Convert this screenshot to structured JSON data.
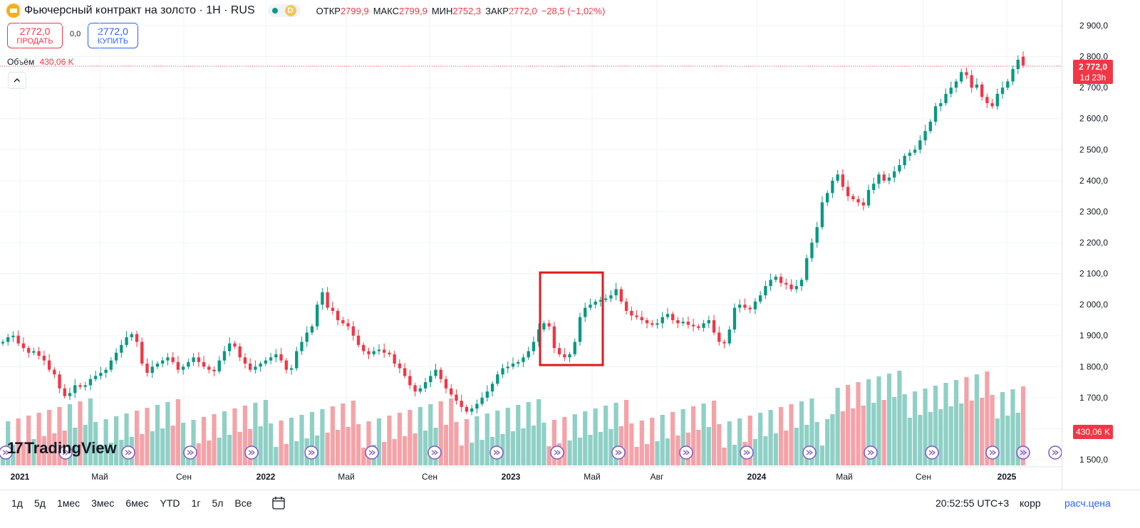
{
  "header": {
    "title": "Фьючерсный контракт на золото · 1Н · RUS",
    "badge_letter": "D",
    "open_label": "ОТКР",
    "open": "2799,9",
    "high_label": "МАКС",
    "high": "2799,9",
    "low_label": "МИН",
    "low": "2752,3",
    "close_label": "ЗАКР",
    "close": "2772,0",
    "change": "−28,5 (−1,02%)"
  },
  "trade": {
    "sell_price": "2772,0",
    "sell_label": "ПРОДАТЬ",
    "spread": "0,0",
    "buy_price": "2772,0",
    "buy_label": "КУПИТЬ"
  },
  "volume": {
    "label": "Объём",
    "value": "430,06 K"
  },
  "collapse_icon": "chevron-up-icon",
  "price_axis": {
    "ticks": [
      "2 900,0",
      "2 800,0",
      "2 700,0",
      "2 600,0",
      "2 500,0",
      "2 400,0",
      "2 300,0",
      "2 200,0",
      "2 100,0",
      "2 000,0",
      "1 900,0",
      "1 800,0",
      "1 700,0",
      "1 600,0",
      "1 500,0"
    ],
    "current_price": "2 772,0",
    "countdown": "1d 23h",
    "volume_tag": "430,06 K"
  },
  "time_axis": [
    "2021",
    "Май",
    "Сен",
    "2022",
    "Май",
    "Сен",
    "2023",
    "Май",
    "Авг",
    "2024",
    "Май",
    "Сен",
    "2025"
  ],
  "logo": "TradingView",
  "bottom_bar": {
    "ranges": [
      "1д",
      "5д",
      "1мес",
      "3мес",
      "6мес",
      "YTD",
      "1г",
      "5л",
      "Все"
    ],
    "clock": "20:52:55 UTC+3",
    "corr": "корр",
    "calc": "расч.цена"
  },
  "colors": {
    "up": "#089981",
    "down": "#f23645",
    "up_vol": "#8fd0c6",
    "down_vol": "#f4a3a8",
    "highlight": "#e0191e",
    "accent": "#2962ff"
  },
  "chart_data": {
    "type": "candlestick",
    "interval": "weekly",
    "x_range": [
      "2020-12",
      "2025-01"
    ],
    "y_range": [
      1500,
      2950
    ],
    "closes": [
      1880,
      1895,
      1900,
      1875,
      1860,
      1845,
      1850,
      1835,
      1820,
      1790,
      1775,
      1730,
      1705,
      1715,
      1740,
      1735,
      1740,
      1760,
      1770,
      1780,
      1790,
      1820,
      1845,
      1870,
      1895,
      1905,
      1880,
      1810,
      1780,
      1800,
      1810,
      1820,
      1830,
      1815,
      1790,
      1800,
      1815,
      1830,
      1815,
      1800,
      1790,
      1785,
      1820,
      1850,
      1875,
      1865,
      1830,
      1810,
      1790,
      1800,
      1810,
      1820,
      1830,
      1840,
      1820,
      1790,
      1795,
      1850,
      1880,
      1910,
      1930,
      2000,
      2040,
      1990,
      1980,
      1950,
      1940,
      1930,
      1900,
      1870,
      1850,
      1840,
      1850,
      1855,
      1845,
      1840,
      1810,
      1795,
      1770,
      1740,
      1720,
      1730,
      1750,
      1770,
      1790,
      1760,
      1730,
      1710,
      1690,
      1670,
      1655,
      1665,
      1680,
      1700,
      1720,
      1745,
      1775,
      1795,
      1800,
      1810,
      1815,
      1830,
      1850,
      1880,
      1920,
      1940,
      1930,
      1860,
      1840,
      1830,
      1840,
      1880,
      1960,
      1990,
      2000,
      2010,
      2015,
      2020,
      2030,
      2050,
      2010,
      1980,
      1965,
      1960,
      1950,
      1940,
      1935,
      1940,
      1960,
      1970,
      1950,
      1940,
      1945,
      1935,
      1930,
      1925,
      1940,
      1950,
      1910,
      1880,
      1875,
      1920,
      1990,
      2000,
      1990,
      1985,
      2010,
      2030,
      2060,
      2080,
      2090,
      2070,
      2065,
      2050,
      2060,
      2080,
      2150,
      2200,
      2250,
      2330,
      2360,
      2400,
      2420,
      2380,
      2350,
      2340,
      2330,
      2320,
      2370,
      2390,
      2420,
      2400,
      2410,
      2430,
      2450,
      2480,
      2490,
      2500,
      2530,
      2560,
      2590,
      2640,
      2650,
      2680,
      2700,
      2720,
      2750,
      2740,
      2700,
      2710,
      2670,
      2650,
      2640,
      2680,
      2700,
      2720,
      2760,
      2790,
      2772
    ]
  }
}
